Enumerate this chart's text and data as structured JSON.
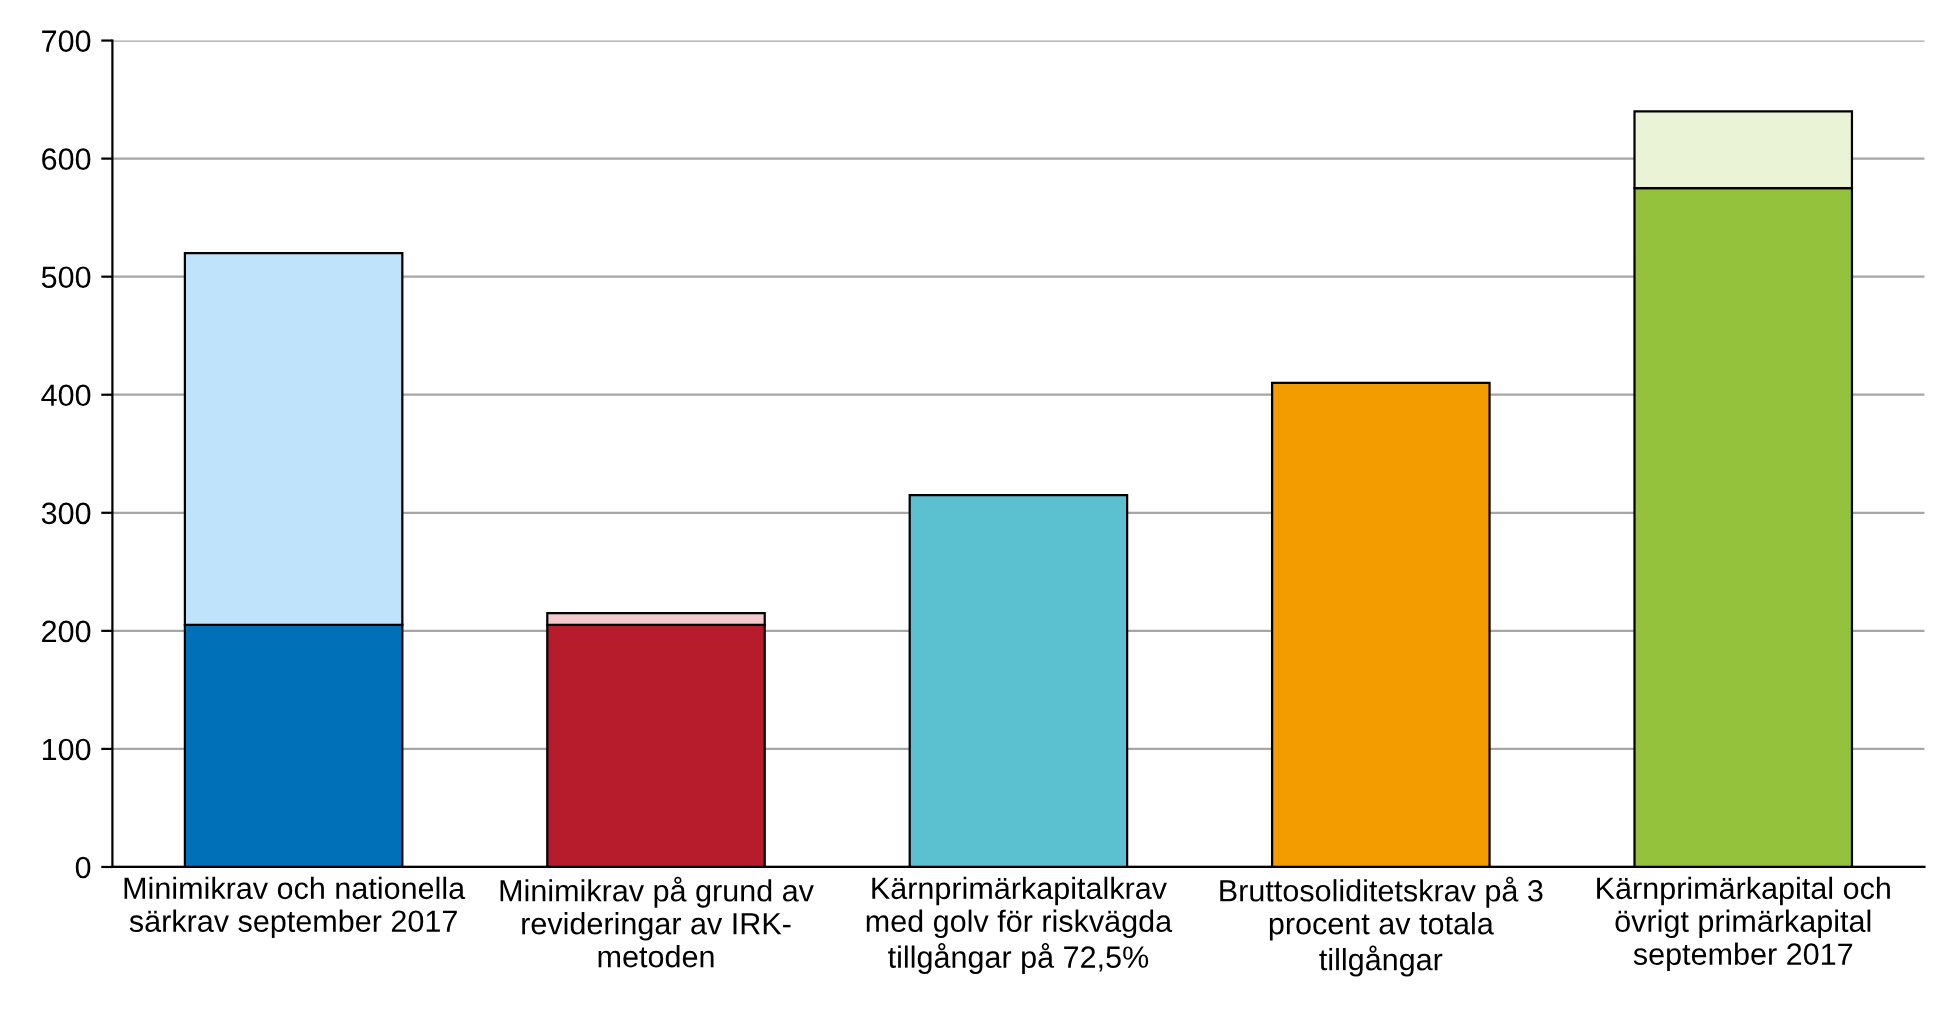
{
  "chart_data": {
    "type": "bar",
    "stacked": true,
    "categories": [
      "Minimikrav och nationella\nsärkrav september 2017",
      "Minimikrav på grund av\nrevideringar av IRK-\nmetoden",
      "Kärnprimärkapitalkrav\nmed golv för riskvägda\ntillgångar på 72,5%",
      "Bruttosoliditetskrav på 3\nprocent av totala\ntillgångar",
      "Kärnprimärkapital och\növrigt primärkapital\nseptember 2017"
    ],
    "series": [
      {
        "colors": [
          "#0070b8",
          "#b71c2c",
          "#5bc1d1",
          "#f39c00",
          "#95c23d"
        ],
        "values": [
          205,
          205,
          315,
          410,
          575
        ]
      },
      {
        "colors": [
          "#bfe3fb",
          "#f2c9cc",
          "#ffffff",
          "#ffffff",
          "#eaf3d6"
        ],
        "values": [
          315,
          10,
          null,
          null,
          65
        ]
      }
    ],
    "ylim": [
      0,
      700
    ],
    "yticks": [
      0,
      100,
      200,
      300,
      400,
      500,
      600,
      700
    ],
    "grid": "y",
    "legend": false
  }
}
